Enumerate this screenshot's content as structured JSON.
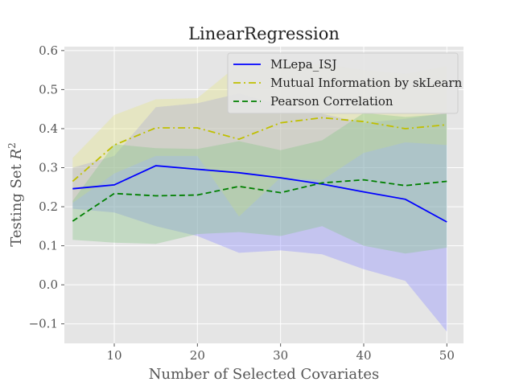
{
  "chart_data": {
    "type": "line",
    "title": "LinearRegression",
    "xlabel": "Number of Selected Covariates",
    "ylabel": "Testing Set R²",
    "ylabel_prefix": "Testing Set ",
    "ylabel_var": "R",
    "ylabel_sup": "2",
    "xlim": [
      4,
      52
    ],
    "ylim": [
      -0.15,
      0.61
    ],
    "xticks": [
      10,
      20,
      30,
      40,
      50
    ],
    "yticks": [
      -0.1,
      0.0,
      0.1,
      0.2,
      0.3,
      0.4,
      0.5,
      0.6
    ],
    "ytick_labels": [
      "−0.1",
      "0.0",
      "0.1",
      "0.2",
      "0.3",
      "0.4",
      "0.5",
      "0.6"
    ],
    "grid": true,
    "legend_position": "top-right",
    "x": [
      5,
      10,
      15,
      20,
      25,
      30,
      35,
      40,
      45,
      50
    ],
    "series": [
      {
        "name": "MLepa_ISJ",
        "color": "#0000ff",
        "dash": "solid",
        "values": [
          0.246,
          0.256,
          0.305,
          0.296,
          0.287,
          0.274,
          0.258,
          0.238,
          0.219,
          0.161
        ],
        "lower": [
          0.195,
          0.185,
          0.15,
          0.125,
          0.082,
          0.088,
          0.078,
          0.04,
          0.01,
          -0.12
        ],
        "upper": [
          0.3,
          0.33,
          0.455,
          0.465,
          0.49,
          0.46,
          0.438,
          0.415,
          0.425,
          0.44
        ],
        "fill": "#8f8fff"
      },
      {
        "name": "Mutual Information by skLearn",
        "color": "#bfbf00",
        "dash": "dashdot",
        "values": [
          0.265,
          0.358,
          0.402,
          0.402,
          0.373,
          0.415,
          0.428,
          0.418,
          0.4,
          0.41
        ],
        "lower": [
          0.21,
          0.285,
          0.33,
          0.33,
          0.175,
          0.275,
          0.268,
          0.338,
          0.365,
          0.358
        ],
        "upper": [
          0.325,
          0.435,
          0.475,
          0.478,
          0.565,
          0.56,
          0.565,
          0.55,
          0.54,
          0.56
        ],
        "fill": "#e6e68a"
      },
      {
        "name": "Pearson Correlation",
        "color": "#008000",
        "dash": "dashed",
        "values": [
          0.163,
          0.234,
          0.228,
          0.23,
          0.252,
          0.236,
          0.261,
          0.269,
          0.254,
          0.265
        ],
        "lower": [
          0.115,
          0.108,
          0.105,
          0.13,
          0.135,
          0.125,
          0.15,
          0.1,
          0.08,
          0.095
        ],
        "upper": [
          0.215,
          0.36,
          0.35,
          0.348,
          0.368,
          0.345,
          0.37,
          0.44,
          0.43,
          0.438
        ],
        "fill": "#88c488"
      }
    ]
  }
}
